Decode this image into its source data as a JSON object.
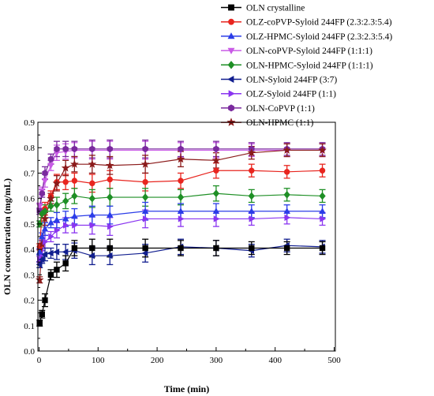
{
  "chart_data": {
    "type": "line",
    "xlabel": "Time (min)",
    "ylabel": "OLN concentration  (mg/mL)",
    "xlim": [
      -10,
      500
    ],
    "ylim": [
      0.0,
      0.9
    ],
    "x_ticks": [
      "0",
      "100",
      "200",
      "300",
      "400",
      "500"
    ],
    "y_ticks": [
      "0.0",
      "0.1",
      "0.2",
      "0.3",
      "0.4",
      "0.5",
      "0.6",
      "0.7",
      "0.8",
      "0.9"
    ],
    "legend_position": "top-right, outside plot",
    "x": [
      1,
      5,
      10,
      20,
      30,
      45,
      60,
      90,
      120,
      180,
      240,
      300,
      360,
      420,
      480
    ],
    "series": [
      {
        "name": "OLN crystalline",
        "color": "#000000",
        "marker": "square",
        "values": [
          0.11,
          0.145,
          0.2,
          0.3,
          0.32,
          0.345,
          0.405,
          0.405,
          0.405,
          0.405,
          0.405,
          0.405,
          0.405,
          0.405,
          0.405
        ]
      },
      {
        "name": "OLZ-coPVP-Syloid 244FP (2.3:2.3:5.4)",
        "color": "#e8251f",
        "marker": "circle",
        "values": [
          0.41,
          0.54,
          0.56,
          0.61,
          0.665,
          0.665,
          0.67,
          0.66,
          0.675,
          0.665,
          0.67,
          0.71,
          0.71,
          0.705,
          0.71
        ]
      },
      {
        "name": "OLZ-HPMC-Syloid 244FP (2.3:2.3:5.4)",
        "color": "#2b3de8",
        "marker": "triangle-up",
        "values": [
          0.39,
          0.45,
          0.48,
          0.505,
          0.515,
          0.52,
          0.53,
          0.535,
          0.535,
          0.55,
          0.55,
          0.55,
          0.55,
          0.55,
          0.55
        ]
      },
      {
        "name": "OLN-coPVP-Syloid 244FP (1:1:1)",
        "color": "#c95be6",
        "marker": "triangle-down",
        "values": [
          0.57,
          0.63,
          0.67,
          0.73,
          0.78,
          0.785,
          0.79,
          0.79,
          0.79,
          0.79,
          0.79,
          0.79,
          0.79,
          0.79,
          0.79
        ]
      },
      {
        "name": "OLN-HPMC-Syloid 244FP (1:1:1)",
        "color": "#1e8f25",
        "marker": "diamond",
        "values": [
          0.5,
          0.54,
          0.55,
          0.57,
          0.575,
          0.59,
          0.61,
          0.6,
          0.605,
          0.605,
          0.605,
          0.62,
          0.61,
          0.615,
          0.61
        ]
      },
      {
        "name": "OLN-Syloid 244FP (3:7)",
        "color": "#111e8f",
        "marker": "triangle-left",
        "values": [
          0.34,
          0.36,
          0.38,
          0.385,
          0.39,
          0.39,
          0.395,
          0.375,
          0.375,
          0.385,
          0.41,
          0.405,
          0.395,
          0.415,
          0.41
        ]
      },
      {
        "name": "OLZ-Syloid 244FP (1:1)",
        "color": "#8a35f0",
        "marker": "triangle-right",
        "values": [
          0.36,
          0.38,
          0.43,
          0.45,
          0.475,
          0.495,
          0.495,
          0.495,
          0.49,
          0.52,
          0.52,
          0.52,
          0.52,
          0.525,
          0.52
        ]
      },
      {
        "name": "OLN-CoPVP (1:1)",
        "color": "#7a2a9e",
        "marker": "hexagon",
        "values": [
          0.55,
          0.62,
          0.7,
          0.755,
          0.795,
          0.795,
          0.795,
          0.795,
          0.795,
          0.795,
          0.795,
          0.795,
          0.795,
          0.795,
          0.795
        ]
      },
      {
        "name": "OLN-HPMC (1:1)",
        "color": "#8b1a1a",
        "marker": "star",
        "values": [
          0.28,
          0.42,
          0.52,
          0.6,
          0.66,
          0.72,
          0.735,
          0.735,
          0.73,
          0.735,
          0.755,
          0.75,
          0.78,
          0.79,
          0.79
        ]
      }
    ]
  }
}
